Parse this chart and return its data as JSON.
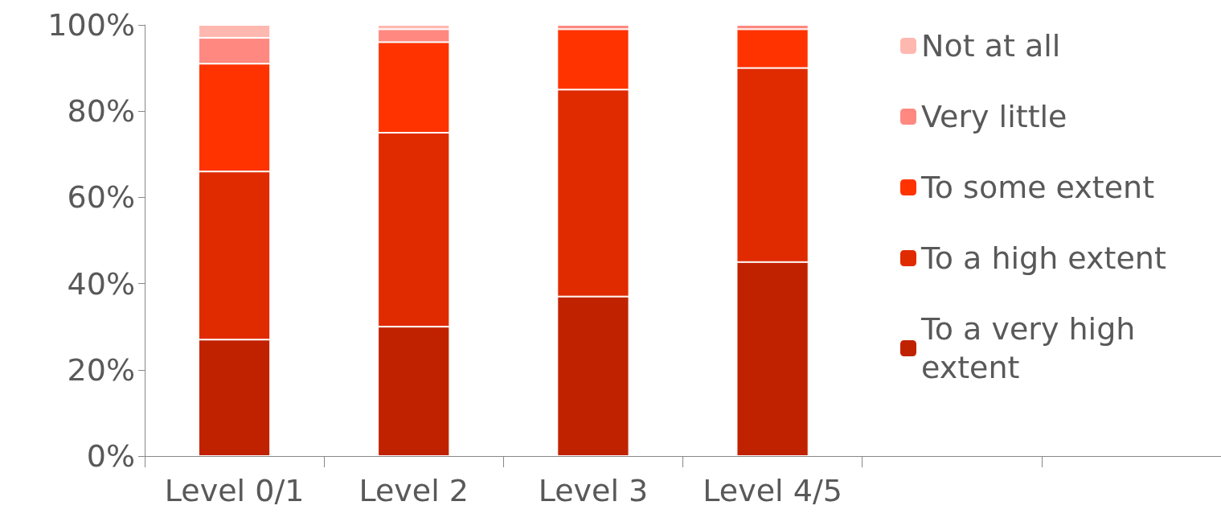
{
  "chart_data": {
    "type": "bar",
    "stacked": true,
    "categories": [
      "Level 0/1",
      "Level 2",
      "Level 3",
      "Level 4/5",
      null,
      null
    ],
    "series": [
      {
        "name": "To a very high extent",
        "color": "#c02200",
        "values": [
          27,
          30,
          37,
          45,
          null,
          null
        ]
      },
      {
        "name": "To a high extent",
        "color": "#e02b00",
        "values": [
          39,
          45,
          48,
          45,
          null,
          null
        ]
      },
      {
        "name": "To some extent",
        "color": "#ff3300",
        "values": [
          25,
          21,
          14,
          9,
          null,
          null
        ]
      },
      {
        "name": "Very little",
        "color": "#ff8880",
        "values": [
          6,
          3,
          1,
          1,
          null,
          null
        ]
      },
      {
        "name": "Not at all",
        "color": "#ffb8b0",
        "values": [
          3,
          1,
          0,
          0,
          null,
          null
        ]
      }
    ],
    "ylim": [
      0,
      100
    ],
    "yticks": [
      {
        "value": 0,
        "label": "0%"
      },
      {
        "value": 20,
        "label": "20%"
      },
      {
        "value": 40,
        "label": "40%"
      },
      {
        "value": 60,
        "label": "60%"
      },
      {
        "value": 80,
        "label": "80%"
      },
      {
        "value": 100,
        "label": "100%"
      }
    ],
    "grid": false,
    "legend": "right"
  }
}
